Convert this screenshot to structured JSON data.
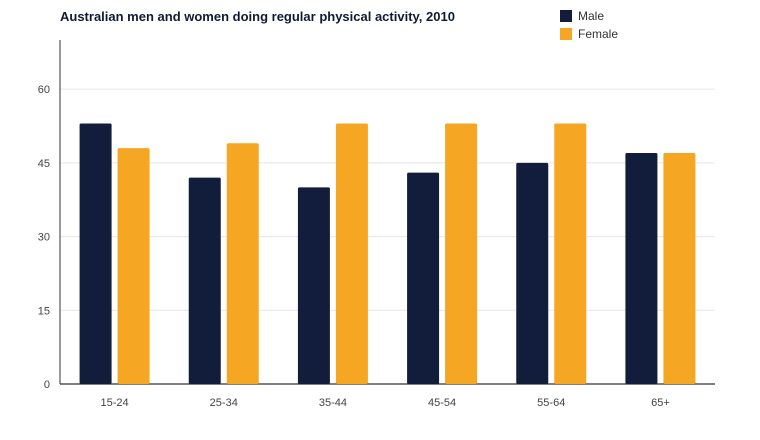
{
  "chart_data": {
    "type": "bar",
    "title": "Australian men and women doing regular physical activity, 2010",
    "categories": [
      "15-24",
      "25-34",
      "35-44",
      "45-54",
      "55-64",
      "65+"
    ],
    "series": [
      {
        "name": "Male",
        "values": [
          53,
          42,
          40,
          43,
          45,
          47
        ],
        "color": "#121c3b"
      },
      {
        "name": "Female",
        "values": [
          48,
          49,
          53,
          53,
          53,
          47
        ],
        "color": "#f5a623"
      }
    ],
    "ylim": [
      0,
      70
    ],
    "yticks": [
      0,
      15,
      30,
      45,
      60
    ],
    "grid": true,
    "legend_position": "top-right"
  }
}
